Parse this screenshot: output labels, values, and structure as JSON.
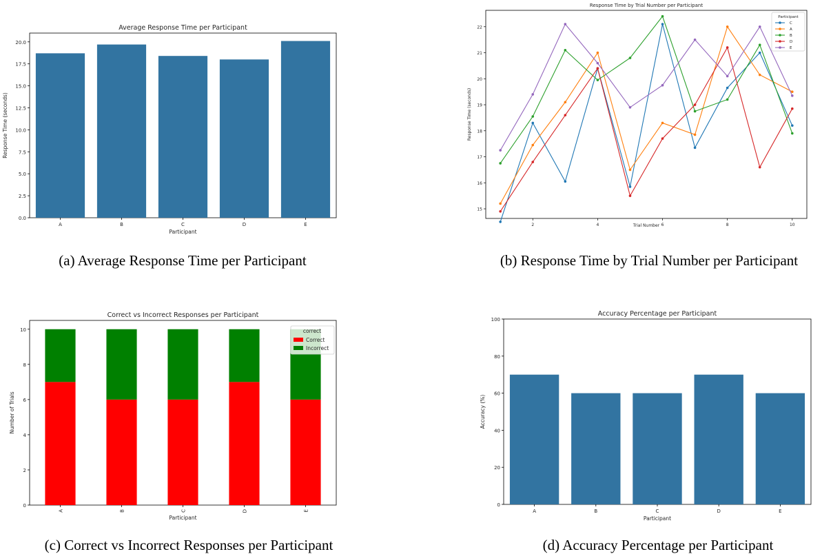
{
  "figure": {
    "captions": [
      "(a) Average Response Time per Participant",
      "(b) Response Time by Trial Number per Participant",
      "(c) Correct vs Incorrect Responses per Participant",
      "(d) Accuracy Percentage per Participant"
    ]
  },
  "colors": {
    "bar": "#3274a1",
    "C": "#1f77b4",
    "A": "#ff7f0e",
    "B": "#2ca02c",
    "D": "#d62728",
    "E": "#9467bd",
    "correct": "#ff0000",
    "incorrect": "#008000"
  },
  "chart_data": [
    {
      "id": "a",
      "type": "bar",
      "title": "Average Response Time per Participant",
      "xlabel": "Participant",
      "ylabel": "Response Time (seconds)",
      "categories": [
        "A",
        "B",
        "C",
        "D",
        "E"
      ],
      "values": [
        18.7,
        19.7,
        18.4,
        18.0,
        20.1
      ],
      "ylim": [
        0,
        21
      ],
      "yticks": [
        "0.0",
        "2.5",
        "5.0",
        "7.5",
        "10.0",
        "12.5",
        "15.0",
        "17.5",
        "20.0"
      ]
    },
    {
      "id": "b",
      "type": "line",
      "title": "Response Time by Trial Number per Participant",
      "xlabel": "Trial Number",
      "ylabel": "Response Time (seconds)",
      "x": [
        1,
        2,
        3,
        4,
        5,
        6,
        7,
        8,
        9,
        10
      ],
      "xlim": [
        0.55,
        10.45
      ],
      "ylim": [
        14.63,
        22.63
      ],
      "xticks": [
        "2",
        "4",
        "6",
        "8",
        "10"
      ],
      "yticks": [
        "15",
        "16",
        "17",
        "18",
        "19",
        "20",
        "21",
        "22"
      ],
      "legend_title": "Participant",
      "legend_position": "top-right",
      "series": [
        {
          "name": "C",
          "values": [
            14.5,
            18.3,
            16.05,
            20.4,
            15.85,
            22.1,
            17.35,
            19.65,
            21.0,
            18.2
          ]
        },
        {
          "name": "A",
          "values": [
            15.2,
            17.45,
            19.1,
            21.0,
            16.5,
            18.3,
            17.85,
            22.0,
            20.15,
            19.5
          ]
        },
        {
          "name": "B",
          "values": [
            16.75,
            18.55,
            21.1,
            19.95,
            20.8,
            22.4,
            18.75,
            19.2,
            21.3,
            17.9
          ]
        },
        {
          "name": "D",
          "values": [
            14.9,
            16.8,
            18.6,
            20.4,
            15.5,
            17.7,
            19.0,
            21.2,
            16.6,
            18.85
          ]
        },
        {
          "name": "E",
          "values": [
            17.25,
            19.4,
            22.1,
            20.6,
            18.9,
            19.75,
            21.5,
            20.1,
            22.0,
            19.35
          ]
        }
      ]
    },
    {
      "id": "c",
      "type": "bar",
      "stacked": true,
      "title": "Correct vs Incorrect Responses per Participant",
      "xlabel": "Participant",
      "ylabel": "Number of Trials",
      "categories": [
        "A",
        "B",
        "C",
        "D",
        "E"
      ],
      "ylim": [
        0,
        10.5
      ],
      "yticks": [
        "0",
        "2",
        "4",
        "6",
        "8",
        "10"
      ],
      "legend_title": "correct",
      "legend_position": "top-right",
      "series": [
        {
          "name": "Correct",
          "values": [
            7,
            6,
            6,
            7,
            6
          ]
        },
        {
          "name": "Incorrect",
          "values": [
            3,
            4,
            4,
            3,
            4
          ]
        }
      ]
    },
    {
      "id": "d",
      "type": "bar",
      "title": "Accuracy Percentage per Participant",
      "xlabel": "Participant",
      "ylabel": "Accuracy (%)",
      "categories": [
        "A",
        "B",
        "C",
        "D",
        "E"
      ],
      "values": [
        70,
        60,
        60,
        70,
        60
      ],
      "ylim": [
        0,
        100
      ],
      "yticks": [
        "0",
        "20",
        "40",
        "60",
        "80",
        "100"
      ]
    }
  ]
}
